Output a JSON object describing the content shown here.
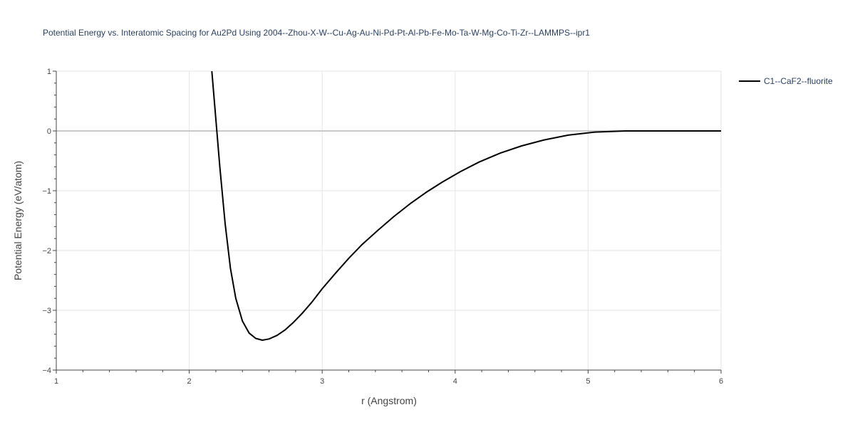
{
  "chart_data": {
    "type": "line",
    "title": "Potential Energy vs. Interatomic Spacing for Au2Pd Using 2004--Zhou-X-W--Cu-Ag-Au-Ni-Pd-Pt-Al-Pb-Fe-Mo-Ta-W-Mg-Co-Ti-Zr--LAMMPS--ipr1",
    "xlabel": "r (Angstrom)",
    "ylabel": "Potential Energy (eV/atom)",
    "xlim": [
      1,
      6
    ],
    "ylim": [
      -4,
      1
    ],
    "xticks": [
      1,
      2,
      3,
      4,
      5,
      6
    ],
    "yticks": [
      -4,
      -3,
      -2,
      -1,
      0,
      1
    ],
    "xtick_labels": [
      "1",
      "2",
      "3",
      "4",
      "5",
      "6"
    ],
    "ytick_labels": [
      "−4",
      "−3",
      "−2",
      "−1",
      "0",
      "1"
    ],
    "grid": true,
    "legend_position": "top-right",
    "series": [
      {
        "name": "C1--CaF2--fluorite",
        "color": "#000000",
        "x": [
          2.17,
          2.2,
          2.23,
          2.27,
          2.31,
          2.35,
          2.4,
          2.45,
          2.5,
          2.55,
          2.6,
          2.66,
          2.72,
          2.78,
          2.85,
          2.92,
          3.0,
          3.1,
          3.2,
          3.3,
          3.42,
          3.54,
          3.66,
          3.78,
          3.9,
          4.04,
          4.18,
          4.34,
          4.5,
          4.67,
          4.85,
          5.05,
          5.28,
          5.55,
          5.8,
          6.0
        ],
        "y": [
          1.0,
          0.2,
          -0.6,
          -1.55,
          -2.3,
          -2.8,
          -3.18,
          -3.38,
          -3.47,
          -3.5,
          -3.48,
          -3.42,
          -3.33,
          -3.21,
          -3.05,
          -2.87,
          -2.64,
          -2.38,
          -2.13,
          -1.9,
          -1.66,
          -1.43,
          -1.22,
          -1.03,
          -0.86,
          -0.68,
          -0.52,
          -0.37,
          -0.25,
          -0.15,
          -0.07,
          -0.02,
          0.0,
          0.0,
          0.0,
          0.0
        ]
      }
    ]
  }
}
